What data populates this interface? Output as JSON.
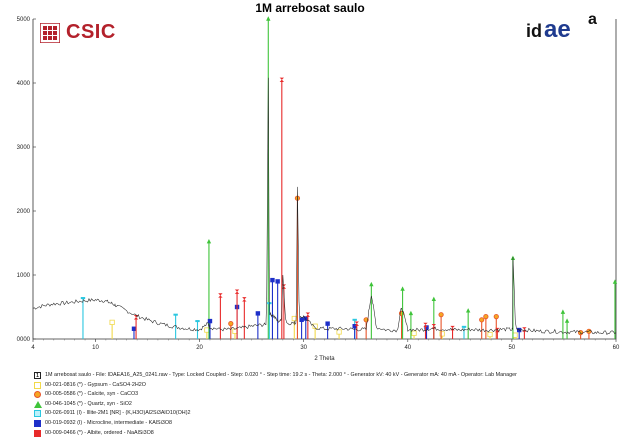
{
  "header": {
    "title": "1M arrebosat saulo"
  },
  "logos": {
    "left": "CSIC",
    "right_prefix": "id",
    "right_core": "ae",
    "right_suffix": "a"
  },
  "colors": {
    "csic_red": "#b3212b",
    "idaea_blue": "#1f3b8f",
    "scan": "#222222",
    "gypsum": "#f1d94a",
    "calcite": "#e8542a",
    "quartz": "#3fc43a",
    "illite": "#2ac7e0",
    "microcline": "#1d2fc9",
    "albite": "#e82a2a"
  },
  "chart_data": {
    "type": "line",
    "title": "1M arrebosat saulo",
    "xlabel": "2 Theta",
    "ylabel": "",
    "xlim": [
      4,
      60
    ],
    "ylim": [
      0,
      5000
    ],
    "grid": false,
    "x_ticks": [
      "4",
      "10",
      "20",
      "30",
      "40",
      "50",
      "60"
    ],
    "y_ticks": [
      "0000",
      "1000",
      "2000",
      "3000",
      "4000",
      "5000"
    ],
    "scan": {
      "name": "1M arrebosat saulo",
      "x": [
        4,
        5,
        6,
        7,
        8,
        9,
        10,
        10.8,
        11.5,
        12,
        13,
        14,
        15,
        16,
        17,
        18,
        19,
        20,
        20.8,
        21,
        22,
        23,
        24,
        25,
        26,
        26.6,
        27,
        27.5,
        28,
        29,
        29.4,
        30,
        31,
        32,
        33,
        34,
        35,
        36,
        36.5,
        37,
        38,
        39,
        39.4,
        40,
        41,
        42,
        43,
        44,
        45,
        46,
        47,
        48,
        49,
        50,
        50.1,
        51,
        52,
        53,
        54,
        55,
        56,
        57,
        58,
        59,
        60
      ],
      "y": [
        480,
        520,
        550,
        560,
        580,
        600,
        610,
        600,
        560,
        520,
        440,
        360,
        300,
        250,
        210,
        180,
        160,
        150,
        240,
        180,
        150,
        150,
        170,
        200,
        220,
        4100,
        380,
        280,
        1000,
        250,
        2400,
        350,
        180,
        160,
        160,
        160,
        150,
        150,
        700,
        180,
        140,
        140,
        500,
        150,
        140,
        160,
        160,
        150,
        140,
        150,
        140,
        140,
        150,
        150,
        1300,
        150,
        130,
        120,
        120,
        110,
        110,
        110,
        100,
        100,
        100
      ]
    },
    "phases": [
      {
        "code": "00-021-0816 (*)",
        "name": "Gypsum",
        "formula": "CaSO4·2H2O",
        "marker": "square",
        "color": "#f1d94a",
        "peaks_x": [
          11.6,
          20.7,
          23.4,
          29.1,
          31.1,
          33.4,
          40.6,
          43.3,
          47.9,
          50.3
        ],
        "peaks_y": [
          260,
          140,
          120,
          320,
          200,
          110,
          90,
          80,
          70,
          60
        ]
      },
      {
        "code": "00-005-0586 (*)",
        "name": "Calcite, syn",
        "formula": "CaCO3",
        "marker": "circle",
        "color": "#e8542a",
        "peaks_x": [
          23.0,
          29.4,
          36.0,
          39.4,
          43.2,
          47.1,
          47.5,
          48.5,
          56.6,
          57.4
        ],
        "peaks_y": [
          240,
          2200,
          300,
          400,
          380,
          300,
          350,
          350,
          100,
          120
        ]
      },
      {
        "code": "00-046-1045 (*)",
        "name": "Quartz, syn",
        "formula": "SiO2",
        "marker": "triangle",
        "color": "#3fc43a",
        "peaks_x": [
          20.9,
          26.6,
          36.5,
          39.5,
          40.3,
          42.5,
          45.8,
          50.1,
          54.9,
          55.3,
          59.9
        ],
        "peaks_y": [
          1520,
          5000,
          850,
          780,
          400,
          620,
          440,
          1260,
          420,
          280,
          890
        ]
      },
      {
        "code": "00-026-0911 (I)",
        "name": "Illite-2M1 [NR]",
        "formula": "(K,H3O)Al2Si3AlO10(OH)2",
        "marker": "bar",
        "color": "#2ac7e0",
        "peaks_x": [
          8.8,
          17.7,
          19.8,
          26.7,
          34.9,
          45.4
        ],
        "peaks_y": [
          640,
          380,
          280,
          560,
          300,
          190
        ]
      },
      {
        "code": "00-019-0932 (I)",
        "name": "Microcline, intermediate",
        "formula": "KAlSi3O8",
        "marker": "square-filled",
        "color": "#1d2fc9",
        "peaks_x": [
          13.7,
          21.0,
          23.6,
          25.6,
          27.0,
          27.5,
          29.8,
          30.2,
          32.3,
          34.9,
          41.8,
          50.7
        ],
        "peaks_y": [
          160,
          280,
          500,
          400,
          920,
          900,
          300,
          320,
          240,
          200,
          180,
          140
        ]
      },
      {
        "code": "00-009-0466 (*)",
        "name": "Albite, ordered",
        "formula": "NaAlSi3O8",
        "marker": "bowtie",
        "color": "#e82a2a",
        "peaks_x": [
          13.9,
          22.0,
          23.6,
          24.3,
          27.9,
          28.1,
          30.4,
          35.1,
          41.7,
          42.5,
          44.3,
          48.6,
          51.2
        ],
        "peaks_y": [
          340,
          680,
          740,
          620,
          4050,
          820,
          380,
          240,
          220,
          200,
          170,
          140,
          150
        ]
      }
    ]
  },
  "legend": {
    "scan_line": "1M arrebosat saulo - File: IDAEA16_A25_0241.raw - Type: Locked Coupled - Step: 0.020 ° - Step time: 19.2 s - Theta: 2.000 ° - Generator kV: 40 kV - Generator mA: 40 mA - Operator: Lab Manager",
    "items": [
      "00-021-0816 (*) - Gypsum - CaSO4·2H2O",
      "00-005-0586 (*) - Calcite, syn - CaCO3",
      "00-046-1045 (*) - Quartz, syn - SiO2",
      "00-026-0911 (I) - Illite-2M1 [NR] - (K,H3O)Al2Si3AlO10(OH)2",
      "00-019-0932 (I) - Microcline, intermediate - KAlSi3O8",
      "00-009-0466 (*) - Albite, ordered - NaAlSi3O8"
    ]
  }
}
